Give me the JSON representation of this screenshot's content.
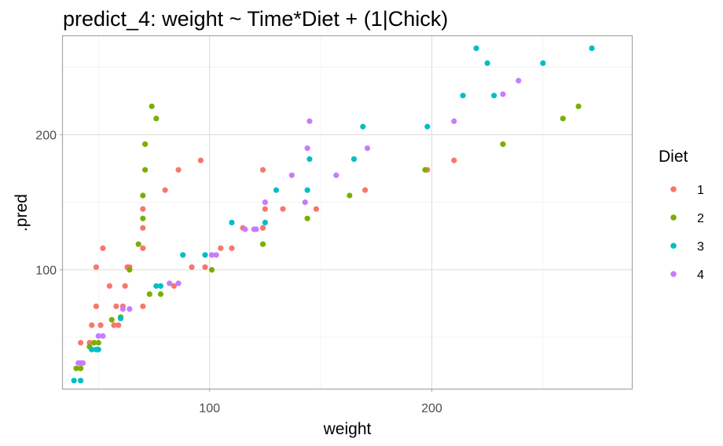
{
  "chart_data": {
    "type": "scatter",
    "title": "predict_4: weight ~ Time*Diet + (1|Chick)",
    "xlabel": "weight",
    "ylabel": ".pred",
    "xlim": [
      34,
      290
    ],
    "ylim": [
      12,
      273
    ],
    "x_ticks": [
      100,
      200
    ],
    "x_tick_labels": [
      "100",
      "200"
    ],
    "x_minor": [
      50,
      150,
      250
    ],
    "y_ticks": [
      100,
      200
    ],
    "y_tick_labels": [
      "100",
      "200"
    ],
    "y_minor": [
      50,
      150,
      250
    ],
    "grid": true,
    "legend": {
      "title": "Diet",
      "position": "right"
    },
    "series": [
      {
        "name": "1",
        "color": "#F8766D",
        "points": [
          [
            42,
            46
          ],
          [
            46,
            46
          ],
          [
            47,
            59
          ],
          [
            49,
            73
          ],
          [
            49,
            102
          ],
          [
            51,
            59
          ],
          [
            52,
            116
          ],
          [
            55,
            88
          ],
          [
            57,
            59
          ],
          [
            58,
            73
          ],
          [
            59,
            59
          ],
          [
            61,
            73
          ],
          [
            62,
            88
          ],
          [
            63,
            102
          ],
          [
            64,
            102
          ],
          [
            70,
            73
          ],
          [
            70,
            116
          ],
          [
            70,
            131
          ],
          [
            70,
            145
          ],
          [
            80,
            159
          ],
          [
            84,
            88
          ],
          [
            92,
            102
          ],
          [
            98,
            102
          ],
          [
            105,
            116
          ],
          [
            110,
            116
          ],
          [
            115,
            131
          ],
          [
            125,
            145
          ],
          [
            124,
            131
          ],
          [
            124,
            174
          ],
          [
            133,
            145
          ],
          [
            148,
            145
          ],
          [
            170,
            159
          ],
          [
            198,
            174
          ],
          [
            210,
            181
          ],
          [
            96,
            181
          ],
          [
            86,
            174
          ]
        ]
      },
      {
        "name": "2",
        "color": "#7CAE00",
        "points": [
          [
            40,
            27
          ],
          [
            42,
            27
          ],
          [
            46,
            43
          ],
          [
            48,
            46
          ],
          [
            50,
            46
          ],
          [
            56,
            63
          ],
          [
            60,
            65
          ],
          [
            64,
            100
          ],
          [
            68,
            119
          ],
          [
            70,
            138
          ],
          [
            70,
            155
          ],
          [
            71,
            174
          ],
          [
            71,
            193
          ],
          [
            73,
            82
          ],
          [
            74,
            221
          ],
          [
            76,
            212
          ],
          [
            78,
            82
          ],
          [
            101,
            100
          ],
          [
            124,
            119
          ],
          [
            144,
            138
          ],
          [
            163,
            155
          ],
          [
            197,
            174
          ],
          [
            232,
            193
          ],
          [
            259,
            212
          ],
          [
            266,
            221
          ]
        ]
      },
      {
        "name": "3",
        "color": "#00BFC4",
        "points": [
          [
            39,
            18
          ],
          [
            42,
            18
          ],
          [
            47,
            41
          ],
          [
            49,
            41
          ],
          [
            50,
            41
          ],
          [
            60,
            64
          ],
          [
            76,
            88
          ],
          [
            78,
            88
          ],
          [
            88,
            111
          ],
          [
            98,
            111
          ],
          [
            110,
            135
          ],
          [
            125,
            135
          ],
          [
            130,
            159
          ],
          [
            144,
            159
          ],
          [
            145,
            182
          ],
          [
            165,
            182
          ],
          [
            169,
            206
          ],
          [
            198,
            206
          ],
          [
            214,
            229
          ],
          [
            228,
            229
          ],
          [
            220,
            264
          ],
          [
            225,
            253
          ],
          [
            250,
            253
          ],
          [
            272,
            264
          ]
        ]
      },
      {
        "name": "4",
        "color": "#C77CFF",
        "points": [
          [
            41,
            31
          ],
          [
            42,
            31
          ],
          [
            43,
            31
          ],
          [
            50,
            51
          ],
          [
            52,
            51
          ],
          [
            61,
            71
          ],
          [
            64,
            71
          ],
          [
            82,
            90
          ],
          [
            86,
            90
          ],
          [
            101,
            111
          ],
          [
            103,
            111
          ],
          [
            116,
            130
          ],
          [
            120,
            130
          ],
          [
            121,
            130
          ],
          [
            125,
            150
          ],
          [
            137,
            170
          ],
          [
            143,
            150
          ],
          [
            144,
            190
          ],
          [
            145,
            210
          ],
          [
            157,
            170
          ],
          [
            171,
            190
          ],
          [
            210,
            210
          ],
          [
            232,
            230
          ],
          [
            239,
            240
          ]
        ]
      }
    ]
  }
}
